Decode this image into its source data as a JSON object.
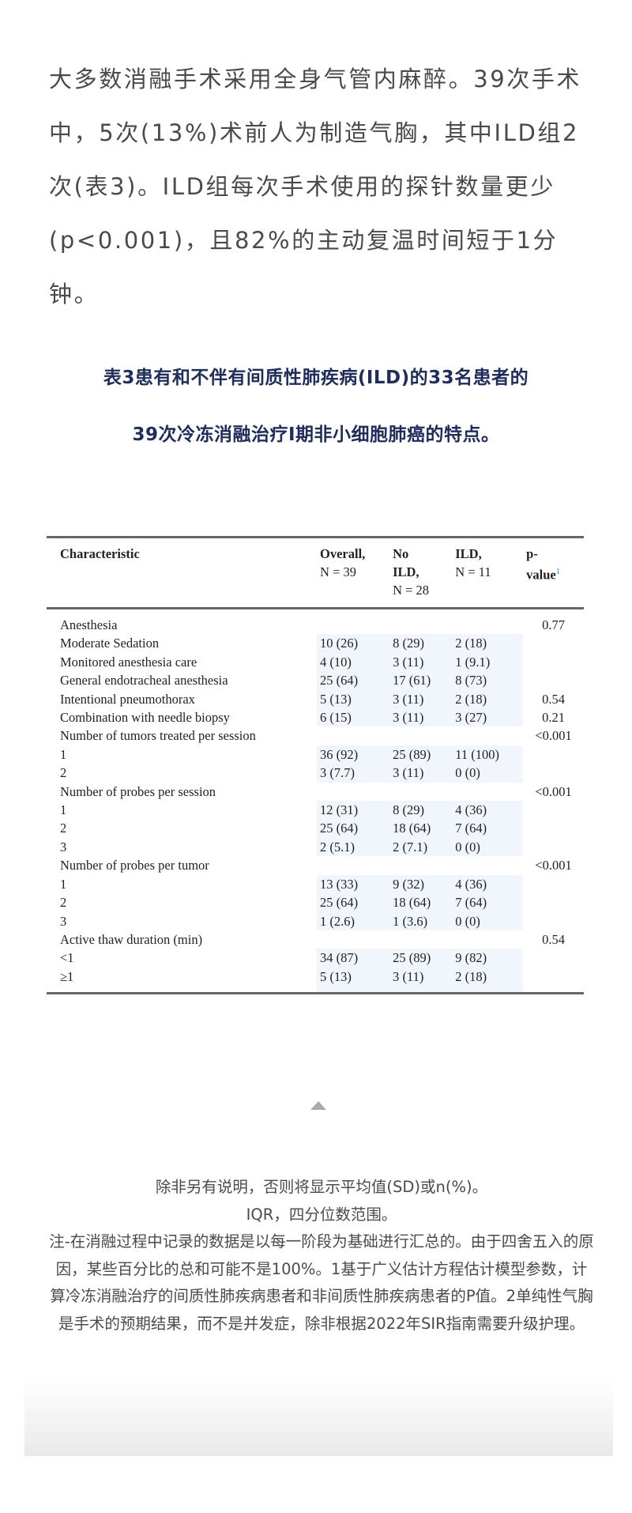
{
  "intro_text": "大多数消融手术采用全身气管内麻醉。39次手术中，5次(13%)术前人为制造气胸，其中ILD组2次(表3)。ILD组每次手术使用的探针数量更少(p<0.001)，且82%的主动复温时间短于1分钟。",
  "table_title": {
    "line1": "表3患有和不伴有间质性肺疾病(ILD)的33名患者的",
    "line2": "39次冷冻消融治疗I期非小细胞肺癌的特点。"
  },
  "table": {
    "headers": {
      "characteristic": "Characteristic",
      "overall": [
        "Overall,",
        "N = 39"
      ],
      "no_ild": [
        "No",
        "ILD,",
        "N = 28"
      ],
      "ild": [
        "ILD,",
        "N = 11"
      ],
      "p": [
        "p-",
        "value"
      ],
      "p_sup": "1"
    },
    "rows": [
      {
        "label": "Anesthesia",
        "overall": "",
        "no_ild": "",
        "ild": "",
        "p": "0.77"
      },
      {
        "label": "Moderate Sedation",
        "overall": "10 (26)",
        "no_ild": "8 (29)",
        "ild": "2 (18)",
        "p": ""
      },
      {
        "label": "Monitored anesthesia care",
        "overall": "4 (10)",
        "no_ild": "3 (11)",
        "ild": "1 (9.1)",
        "p": ""
      },
      {
        "label": "General endotracheal anesthesia",
        "overall": "25 (64)",
        "no_ild": "17 (61)",
        "ild": "8 (73)",
        "p": ""
      },
      {
        "label": "Intentional pneumothorax",
        "overall": "5 (13)",
        "no_ild": "3 (11)",
        "ild": "2 (18)",
        "p": "0.54"
      },
      {
        "label": "Combination with needle biopsy",
        "overall": "6 (15)",
        "no_ild": "3 (11)",
        "ild": "3 (27)",
        "p": "0.21"
      },
      {
        "label": "Number of tumors treated per session",
        "overall": "",
        "no_ild": "",
        "ild": "",
        "p": "<0.001"
      },
      {
        "label": "1",
        "overall": "36 (92)",
        "no_ild": "25 (89)",
        "ild": "11 (100)",
        "p": ""
      },
      {
        "label": "2",
        "overall": "3 (7.7)",
        "no_ild": "3 (11)",
        "ild": "0 (0)",
        "p": ""
      },
      {
        "label": "Number of probes per session",
        "overall": "",
        "no_ild": "",
        "ild": "",
        "p": "<0.001"
      },
      {
        "label": "1",
        "overall": "12 (31)",
        "no_ild": "8 (29)",
        "ild": "4 (36)",
        "p": ""
      },
      {
        "label": "2",
        "overall": "25 (64)",
        "no_ild": "18 (64)",
        "ild": "7 (64)",
        "p": ""
      },
      {
        "label": "3",
        "overall": "2 (5.1)",
        "no_ild": "2 (7.1)",
        "ild": "0 (0)",
        "p": ""
      },
      {
        "label": "Number of probes per tumor",
        "overall": "",
        "no_ild": "",
        "ild": "",
        "p": "<0.001"
      },
      {
        "label": "1",
        "overall": "13 (33)",
        "no_ild": "9 (32)",
        "ild": "4 (36)",
        "p": ""
      },
      {
        "label": "2",
        "overall": "25 (64)",
        "no_ild": "18 (64)",
        "ild": "7 (64)",
        "p": ""
      },
      {
        "label": "3",
        "overall": "1 (2.6)",
        "no_ild": "1 (3.6)",
        "ild": "0 (0)",
        "p": ""
      },
      {
        "label": "Active thaw duration (min)",
        "overall": "",
        "no_ild": "",
        "ild": "",
        "p": "0.54"
      },
      {
        "label": "<1",
        "overall": "34 (87)",
        "no_ild": "25 (89)",
        "ild": "9 (82)",
        "p": ""
      },
      {
        "label": "≥1",
        "overall": "5 (13)",
        "no_ild": "3 (11)",
        "ild": "2 (18)",
        "p": ""
      }
    ]
  },
  "icons": {
    "collapse": "triangle-up-icon"
  },
  "footnotes": [
    "除非另有说明，否则将显示平均值(SD)或n(%)。",
    "IQR，四分位数范围。",
    "注-在消融过程中记录的数据是以每一阶段为基础进行汇总的。由于四舍五入的原因，某些百分比的总和可能不是100%。1基于广义估计方程估计模型参数，计算冷冻消融治疗的间质性肺疾病患者和非间质性肺疾病患者的P值。2单纯性气胸是手术的预期结果，而不是并发症，除非根据2022年SIR指南需要升级护理。"
  ],
  "colors": {
    "title": "#1f2d5a",
    "body_text": "#4a4a4a",
    "cell_shade": "#f1f6fc"
  }
}
